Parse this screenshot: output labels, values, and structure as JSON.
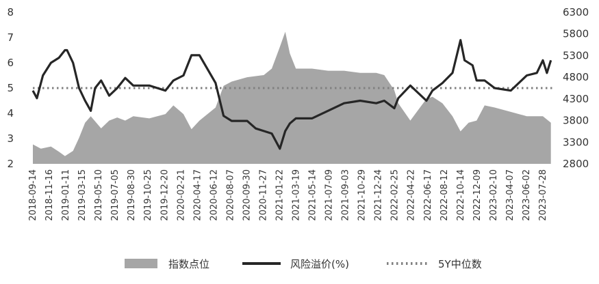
{
  "chart_data": {
    "type": "area",
    "title": "",
    "xlabel": "",
    "ylabel_left": "",
    "ylabel_right": "",
    "left_axis": {
      "min": 2,
      "max": 8,
      "ticks": [
        "2",
        "3",
        "4",
        "5",
        "6",
        "7",
        "8"
      ]
    },
    "right_axis": {
      "min": 2800,
      "max": 6300,
      "ticks": [
        "2800",
        "3300",
        "3800",
        "4300",
        "4800",
        "5300",
        "5800",
        "6300"
      ]
    },
    "x_tick_labels": [
      "2018-09-14",
      "2018-11-16",
      "2019-01-11",
      "2019-03-15",
      "2019-05-10",
      "2019-07-05",
      "2019-08-30",
      "2019-10-25",
      "2019-12-20",
      "2020-02-21",
      "2020-04-17",
      "2020-06-12",
      "2020-08-07",
      "2020-09-30",
      "2020-11-27",
      "2021-01-22",
      "2021-03-19",
      "2021-05-14",
      "2021-07-09",
      "2021-09-03",
      "2021-10-29",
      "2021-12-24",
      "2022-02-25",
      "2022-04-22",
      "2022-06-17",
      "2022-08-12",
      "2022-10-14",
      "2022-12-09",
      "2023-02-10",
      "2023-04-07",
      "2023-06-02",
      "2023-07-28"
    ],
    "grid": false,
    "legend_position": "bottom",
    "colors": {
      "index_area": "#a6a6a6",
      "spread_line": "#262626",
      "median_line": "#808080"
    },
    "series": [
      {
        "name": "指数点位",
        "type": "area",
        "axis": "right",
        "x": [
          "2018-09-14",
          "2018-10-12",
          "2018-11-16",
          "2018-12-14",
          "2019-01-04",
          "2019-02-01",
          "2019-02-22",
          "2019-03-15",
          "2019-04-04",
          "2019-05-10",
          "2019-06-07",
          "2019-07-05",
          "2019-08-02",
          "2019-08-30",
          "2019-10-25",
          "2019-12-20",
          "2020-01-17",
          "2020-02-21",
          "2020-03-20",
          "2020-04-17",
          "2020-06-12",
          "2020-07-10",
          "2020-08-07",
          "2020-09-30",
          "2020-11-27",
          "2020-12-25",
          "2021-01-22",
          "2021-02-10",
          "2021-02-26",
          "2021-03-19",
          "2021-05-14",
          "2021-07-09",
          "2021-09-03",
          "2021-10-29",
          "2021-12-24",
          "2022-01-21",
          "2022-02-25",
          "2022-03-11",
          "2022-04-22",
          "2022-05-20",
          "2022-06-17",
          "2022-07-08",
          "2022-08-12",
          "2022-09-16",
          "2022-10-14",
          "2022-11-11",
          "2022-12-09",
          "2023-01-06",
          "2023-02-10",
          "2023-04-07",
          "2023-06-02",
          "2023-07-28",
          "2023-08-25"
        ],
        "values": [
          3250,
          3150,
          3200,
          3080,
          2980,
          3100,
          3400,
          3750,
          3900,
          3620,
          3800,
          3870,
          3800,
          3900,
          3850,
          3950,
          4150,
          3950,
          3600,
          3800,
          4100,
          4600,
          4700,
          4800,
          4850,
          5000,
          5500,
          5850,
          5350,
          5000,
          5000,
          4950,
          4950,
          4900,
          4900,
          4850,
          4500,
          4200,
          3800,
          4050,
          4300,
          4350,
          4200,
          3900,
          3550,
          3750,
          3800,
          4150,
          4100,
          4000,
          3900,
          3900,
          3750
        ]
      },
      {
        "name": "风险溢价(%)",
        "type": "line",
        "axis": "left",
        "x": [
          "2018-09-14",
          "2018-09-28",
          "2018-10-19",
          "2018-11-16",
          "2018-12-14",
          "2019-01-04",
          "2019-01-11",
          "2019-02-01",
          "2019-02-22",
          "2019-03-15",
          "2019-04-04",
          "2019-04-19",
          "2019-05-10",
          "2019-06-07",
          "2019-07-05",
          "2019-08-02",
          "2019-08-30",
          "2019-10-25",
          "2019-12-20",
          "2020-01-17",
          "2020-02-21",
          "2020-03-20",
          "2020-04-17",
          "2020-06-12",
          "2020-07-10",
          "2020-08-07",
          "2020-09-30",
          "2020-10-30",
          "2020-11-27",
          "2020-12-25",
          "2021-01-22",
          "2021-02-10",
          "2021-02-26",
          "2021-03-19",
          "2021-05-14",
          "2021-07-09",
          "2021-09-03",
          "2021-10-29",
          "2021-12-24",
          "2022-01-21",
          "2022-02-25",
          "2022-03-11",
          "2022-04-22",
          "2022-06-17",
          "2022-07-08",
          "2022-08-12",
          "2022-09-16",
          "2022-10-14",
          "2022-10-28",
          "2022-11-25",
          "2022-12-09",
          "2023-01-06",
          "2023-02-10",
          "2023-04-07",
          "2023-06-02",
          "2023-07-07",
          "2023-07-28",
          "2023-08-11",
          "2023-08-25"
        ],
        "values": [
          4.9,
          4.6,
          5.5,
          6.0,
          6.2,
          6.5,
          6.5,
          6.0,
          5.0,
          4.5,
          4.1,
          5.0,
          5.3,
          4.7,
          5.0,
          5.4,
          5.1,
          5.1,
          4.9,
          5.3,
          5.5,
          6.3,
          6.3,
          5.2,
          3.9,
          3.7,
          3.7,
          3.4,
          3.3,
          3.2,
          2.6,
          3.3,
          3.6,
          3.8,
          3.8,
          4.1,
          4.4,
          4.5,
          4.4,
          4.5,
          4.2,
          4.6,
          5.1,
          4.5,
          4.9,
          5.2,
          5.6,
          6.9,
          6.1,
          5.9,
          5.3,
          5.3,
          5.0,
          4.9,
          5.5,
          5.6,
          6.1,
          5.6,
          6.1
        ]
      },
      {
        "name": "5Y中位数",
        "type": "line",
        "axis": "left",
        "values": [
          5.0
        ]
      }
    ]
  }
}
